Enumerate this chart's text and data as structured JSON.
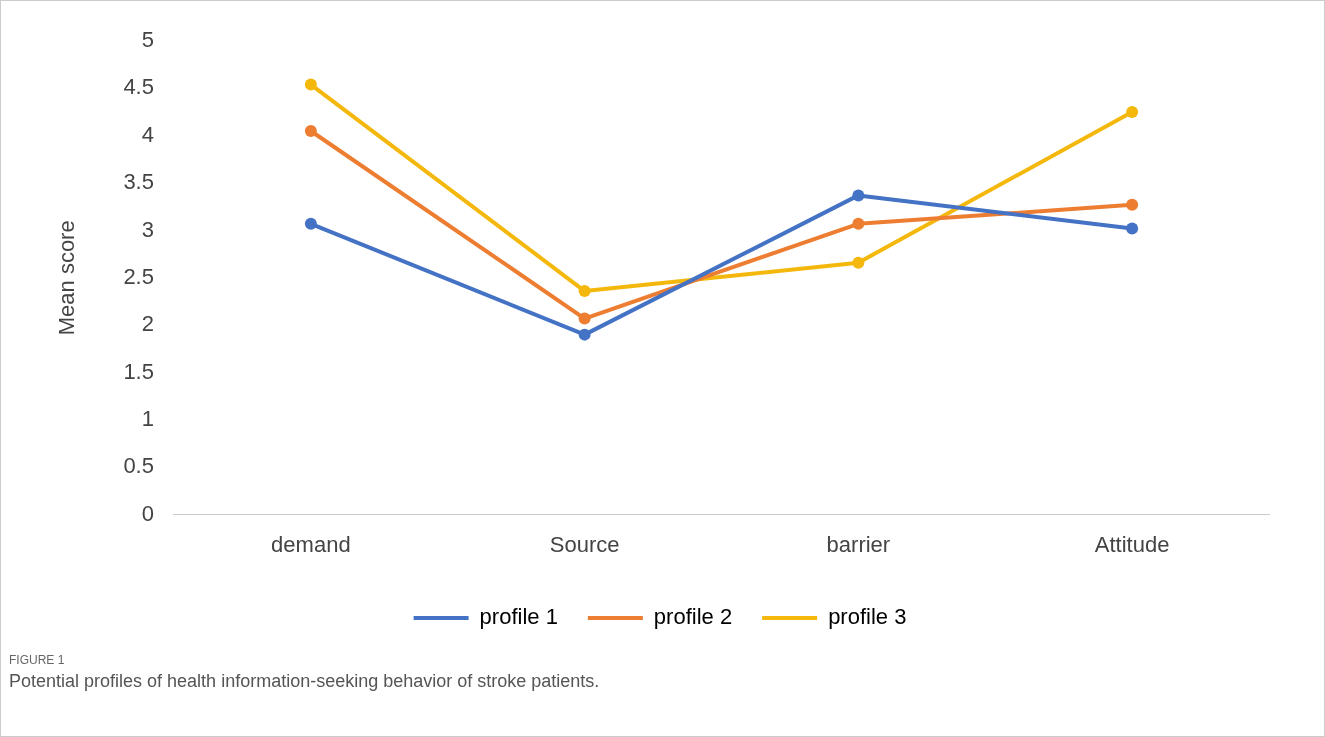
{
  "chart_data": {
    "type": "line",
    "ylabel": "Mean score",
    "categories": [
      "demand",
      "Source",
      "barrier",
      "Attitude"
    ],
    "series": [
      {
        "name": "profile 1",
        "color": "#4472c4",
        "values": [
          3.07,
          1.9,
          3.37,
          3.02
        ]
      },
      {
        "name": "profile 2",
        "color": "#ed7d31",
        "values": [
          4.05,
          2.07,
          3.07,
          3.27
        ]
      },
      {
        "name": "profile 3",
        "color": "#f4b80c",
        "values": [
          4.54,
          2.36,
          2.66,
          4.25
        ]
      }
    ],
    "ylim": [
      0,
      5
    ],
    "yticks": [
      0,
      0.5,
      1,
      1.5,
      2,
      2.5,
      3,
      3.5,
      4,
      4.5,
      5
    ],
    "grid": false,
    "legend": "bottom",
    "marker": "circle",
    "line_style": "solid",
    "annotations": [
      "FIGURE 1",
      "Potential profiles of health information-seeking behavior of stroke patients."
    ]
  }
}
